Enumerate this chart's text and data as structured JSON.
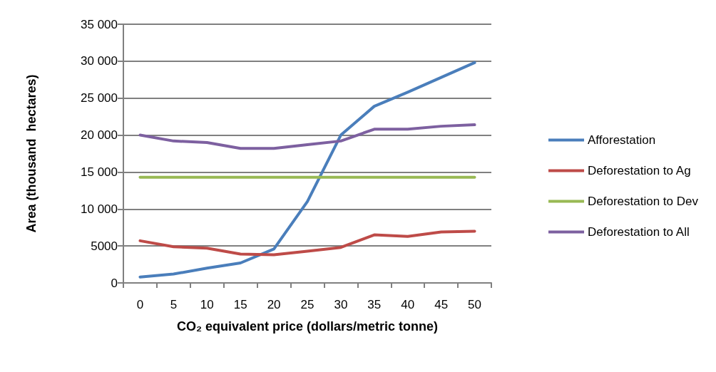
{
  "chart_data": {
    "type": "line",
    "xlabel": "CO₂ equivalent price (dollars/metric tonne)",
    "ylabel": "Area (thousand  hectares)",
    "categories": [
      "0",
      "5",
      "10",
      "15",
      "20",
      "25",
      "30",
      "35",
      "40",
      "45",
      "50"
    ],
    "series": [
      {
        "name": "Afforestation",
        "color": "#4a7ebb",
        "values": [
          800,
          1200,
          2000,
          2700,
          4600,
          11000,
          20000,
          23900,
          25800,
          27800,
          29800
        ]
      },
      {
        "name": "Deforestation to Ag",
        "color": "#be4b48",
        "values": [
          5700,
          4900,
          4700,
          3900,
          3800,
          4300,
          4800,
          6500,
          6300,
          6900,
          7000
        ]
      },
      {
        "name": "Deforestation to Dev",
        "color": "#98b954",
        "values": [
          14300,
          14300,
          14300,
          14300,
          14300,
          14300,
          14300,
          14300,
          14300,
          14300,
          14300
        ]
      },
      {
        "name": "Deforestation to All",
        "color": "#7d60a0",
        "values": [
          20000,
          19200,
          19000,
          18200,
          18200,
          18700,
          19200,
          20800,
          20800,
          21200,
          21400
        ]
      }
    ],
    "ylim": [
      0,
      35000
    ],
    "yticks": [
      0,
      5000,
      {
        "value": 10000,
        "label": "10 000"
      },
      {
        "value": 15000,
        "label": "15 000"
      },
      {
        "value": 20000,
        "label": "20 000"
      },
      {
        "value": 25000,
        "label": "25 000"
      },
      {
        "value": 30000,
        "label": "30 000"
      },
      {
        "value": 35000,
        "label": "35 000"
      }
    ],
    "grid": "y",
    "legend": "right",
    "marker": "none",
    "line_style": "solid"
  }
}
